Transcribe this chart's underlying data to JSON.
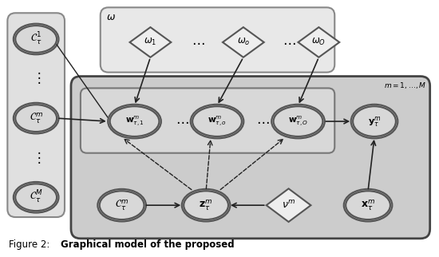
{
  "fig_width": 5.5,
  "fig_height": 3.22,
  "dpi": 100,
  "bg_color": "#ffffff",
  "node_fill_light": "#e0e0e0",
  "node_fill_dark": "#aaaaaa",
  "node_edge_color": "#555555",
  "diamond_fill": "#eeeeee",
  "plate_left_color": "#e0e0e0",
  "plate_left_edge": "#888888",
  "plate_omega_color": "#e8e8e8",
  "plate_omega_edge": "#888888",
  "plate_main_color": "#cccccc",
  "plate_main_edge": "#444444",
  "plate_w_color": "#d8d8d8",
  "plate_w_edge": "#777777",
  "arrow_color": "#222222",
  "line_color": "#222222"
}
